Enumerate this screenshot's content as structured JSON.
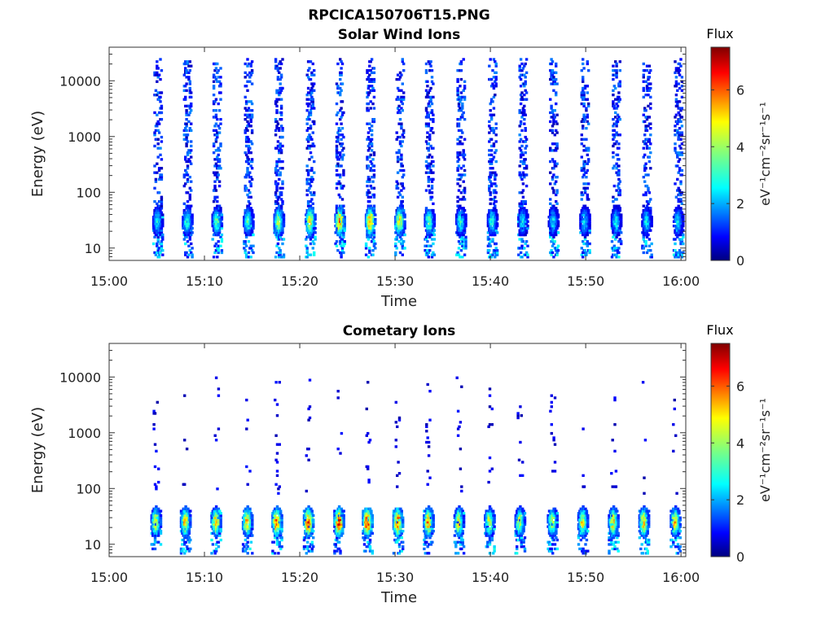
{
  "figure": {
    "filename": "RPCICA150706T15.PNG"
  },
  "colors": {
    "colormap": [
      "#00007f",
      "#0000ff",
      "#007fff",
      "#00ffff",
      "#7fff7f",
      "#ffff00",
      "#ff7f00",
      "#ff0000",
      "#7f0000"
    ],
    "axis": "#333333",
    "background": "#ffffff"
  },
  "chart_data": [
    {
      "type": "heatmap",
      "title": "Solar Wind Ions",
      "xlabel": "Time",
      "ylabel": "Energy (eV)",
      "x_ticks": [
        "15:00",
        "15:10",
        "15:20",
        "15:30",
        "15:40",
        "15:50",
        "16:00"
      ],
      "x_tick_minutes": [
        0,
        10,
        20,
        30,
        40,
        50,
        60
      ],
      "xlim_minutes": [
        0,
        60.5
      ],
      "y_scale": "log",
      "y_ticks": [
        "10",
        "100",
        "1000",
        "10000"
      ],
      "y_tick_values": [
        10,
        100,
        1000,
        10000
      ],
      "ylim": [
        6,
        40000
      ],
      "colorbar": {
        "label_top": "Flux",
        "label": "eV⁻¹cm⁻²sr⁻¹s⁻¹",
        "ticks": [
          "0",
          "2",
          "4",
          "6"
        ],
        "tick_values": [
          0,
          2,
          4,
          6
        ],
        "range": [
          0,
          7.5
        ]
      },
      "sweep_times_minutes": [
        5.0,
        8.1,
        11.2,
        14.5,
        17.7,
        21.0,
        24.1,
        27.3,
        30.4,
        33.5,
        36.8,
        40.1,
        43.3,
        46.5,
        49.8,
        53.1,
        56.3,
        59.6
      ],
      "sweep_peak_flux": [
        3.2,
        3.5,
        3.6,
        3.6,
        4.5,
        5.3,
        6.0,
        6.0,
        5.0,
        4.0,
        3.4,
        3.4,
        3.0,
        3.0,
        3.0,
        3.0,
        3.0,
        3.0
      ],
      "peak_energy_eV": 30,
      "description": "Background low-flux (blue) counts up to ~30 keV in each sweep; enhanced flux at 15-40 eV near 15:20-15:35"
    },
    {
      "type": "heatmap",
      "title": "Cometary Ions",
      "xlabel": "Time",
      "ylabel": "Energy (eV)",
      "x_ticks": [
        "15:00",
        "15:10",
        "15:20",
        "15:30",
        "15:40",
        "15:50",
        "16:00"
      ],
      "x_tick_minutes": [
        0,
        10,
        20,
        30,
        40,
        50,
        60
      ],
      "xlim_minutes": [
        0,
        60.5
      ],
      "y_scale": "log",
      "y_ticks": [
        "10",
        "100",
        "1000",
        "10000"
      ],
      "y_tick_values": [
        10,
        100,
        1000,
        10000
      ],
      "ylim": [
        6,
        40000
      ],
      "colorbar": {
        "label_top": "Flux",
        "label": "eV⁻¹cm⁻²sr⁻¹s⁻¹",
        "ticks": [
          "0",
          "2",
          "4",
          "6"
        ],
        "tick_values": [
          0,
          2,
          4,
          6
        ],
        "range": [
          0,
          7.5
        ]
      },
      "sweep_times_minutes": [
        4.8,
        7.9,
        11.1,
        14.4,
        17.5,
        20.8,
        24.0,
        27.0,
        30.2,
        33.4,
        36.6,
        39.8,
        43.0,
        46.4,
        49.6,
        52.8,
        56.0,
        59.3
      ],
      "sweep_peak_flux": [
        5.0,
        5.6,
        5.6,
        5.8,
        6.4,
        6.8,
        7.0,
        7.0,
        6.6,
        6.0,
        5.4,
        4.8,
        4.6,
        4.6,
        5.2,
        5.6,
        5.6,
        5.6
      ],
      "peak_energy_eV": 25,
      "description": "Strong flux 12-40 eV in every sweep, highest around 15:20-15:30; sparse low-flux points up to ~10 keV"
    }
  ]
}
